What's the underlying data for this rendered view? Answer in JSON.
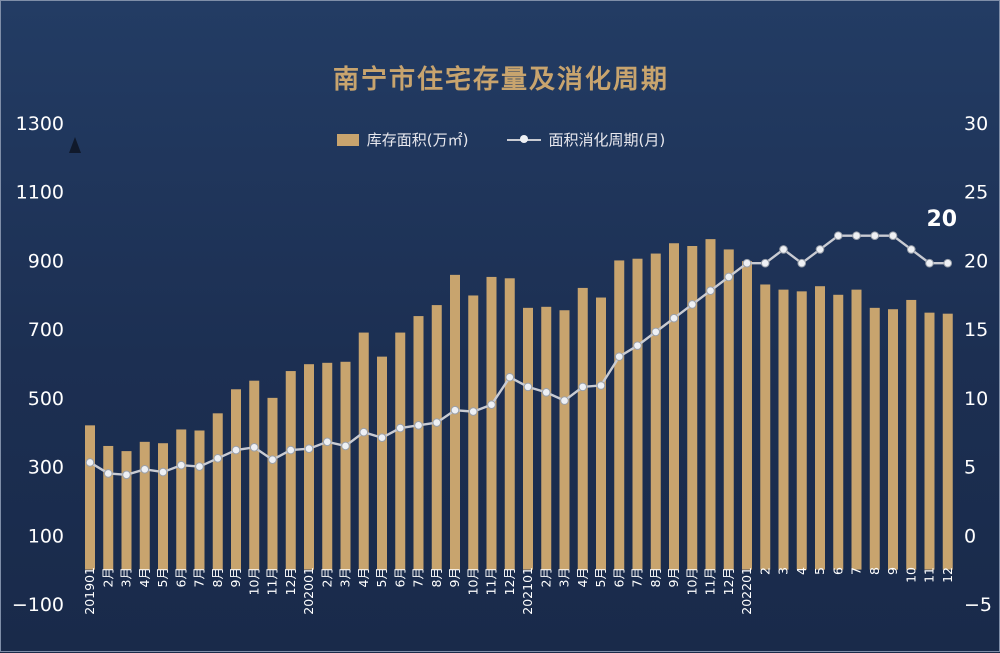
{
  "chart_data": {
    "type": "bar",
    "title": "南宁市住宅存量及消化周期",
    "categories": [
      "201901",
      "2月",
      "3月",
      "4月",
      "5月",
      "6月",
      "7月",
      "8月",
      "9月",
      "10月",
      "11月",
      "12月",
      "202001",
      "2月",
      "3月",
      "4月",
      "5月",
      "6月",
      "7月",
      "8月",
      "9月",
      "10月",
      "11月",
      "12月",
      "202101",
      "2月",
      "3月",
      "4月",
      "5月",
      "6月",
      "7月",
      "8月",
      "9月",
      "10月",
      "11月",
      "12月",
      "202201",
      "2",
      "3",
      "4",
      "5",
      "6",
      "7",
      "8",
      "9",
      "10",
      "11",
      "12"
    ],
    "series": [
      {
        "name": "库存面积(万㎡)",
        "type": "bar",
        "axis": "left",
        "color": "#c8a46e",
        "values": [
          420,
          360,
          345,
          372,
          368,
          408,
          405,
          455,
          525,
          550,
          500,
          578,
          598,
          602,
          605,
          690,
          620,
          690,
          738,
          770,
          858,
          798,
          852,
          848,
          762,
          765,
          755,
          820,
          792,
          900,
          905,
          920,
          950,
          942,
          962,
          932,
          898,
          830,
          815,
          810,
          825,
          800,
          815,
          762,
          758,
          785,
          748,
          745
        ]
      },
      {
        "name": "面积消化周期(月)",
        "type": "line",
        "axis": "right",
        "color": "#c9cbd2",
        "values": [
          5.3,
          4.5,
          4.4,
          4.8,
          4.6,
          5.1,
          5.0,
          5.6,
          6.2,
          6.4,
          5.5,
          6.2,
          6.3,
          6.8,
          6.5,
          7.5,
          7.1,
          7.8,
          8.0,
          8.2,
          9.1,
          9.0,
          9.5,
          11.5,
          10.8,
          10.4,
          9.8,
          10.8,
          10.9,
          13.0,
          13.8,
          14.8,
          15.8,
          16.8,
          17.8,
          18.8,
          19.8,
          19.8,
          20.8,
          19.8,
          20.8,
          21.8,
          21.8,
          21.8,
          21.8,
          20.8,
          19.8,
          19.8
        ]
      }
    ],
    "y_left": {
      "ylim": [
        -100,
        1300
      ],
      "ticks": [
        "1300",
        "1100",
        "900",
        "700",
        "500",
        "300",
        "100",
        "−100"
      ]
    },
    "y_right": {
      "ylim": [
        -5,
        30
      ],
      "ticks": [
        "30",
        "25",
        "20",
        "15",
        "10",
        "5",
        "0",
        "−5"
      ]
    },
    "annotation": "20",
    "legend_position": "top-center",
    "grid": false
  }
}
